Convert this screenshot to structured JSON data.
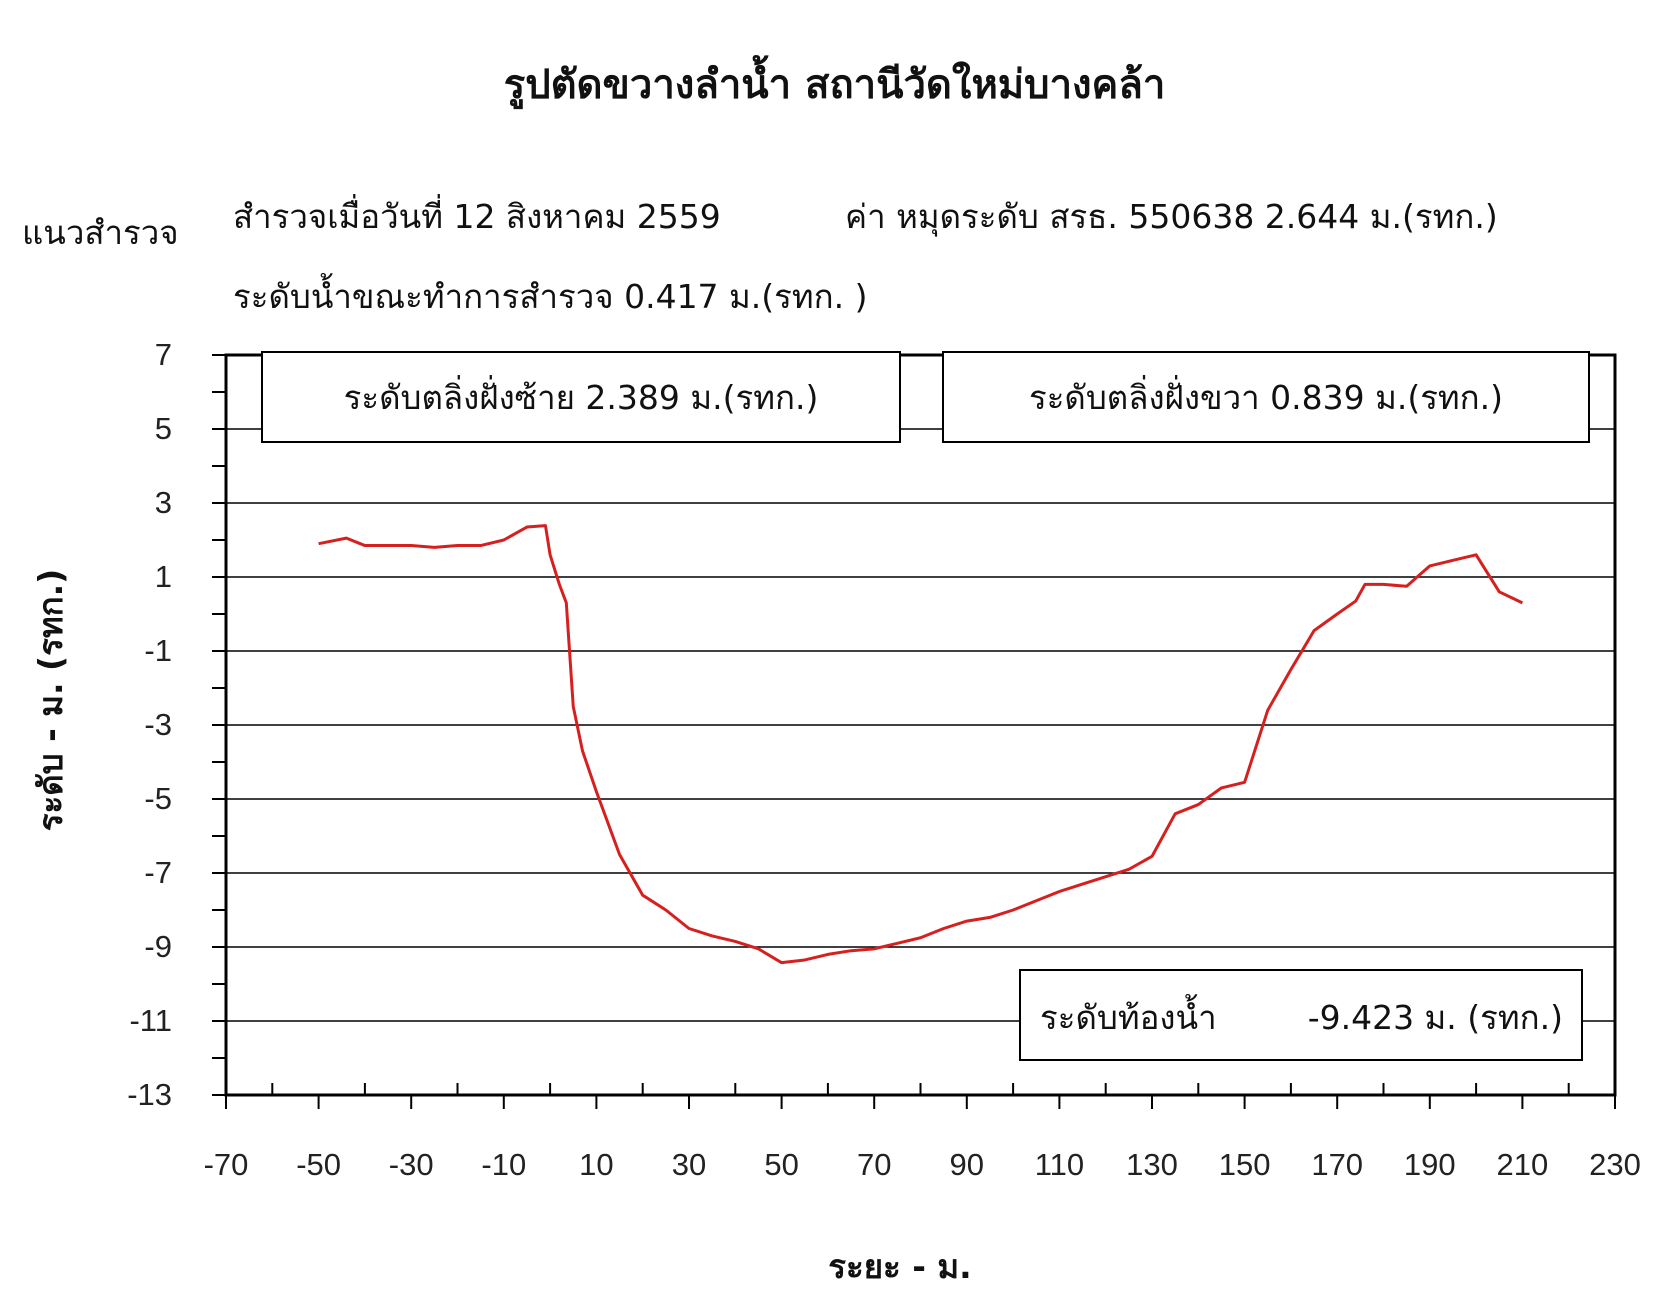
{
  "header": {
    "title": "รูปตัดขวางลำน้ำ  สถานีวัดใหม่บางคล้า",
    "survey_line_label": "แนวสำรวจ",
    "survey_date": "สำรวจเมื่อวันที่  12  สิงหาคม  2559",
    "benchmark": "ค่า หมุดระดับ สรธ. 550638   2.644 ม.(รทก.)",
    "water_level": "ระดับน้ำขณะทำการสำรวจ   0.417  ม.(รทก. )"
  },
  "chart_data": {
    "type": "line",
    "title": "รูปตัดขวางลำน้ำ  สถานีวัดใหม่บางคล้า",
    "xlabel": "ระยะ - ม.",
    "ylabel": "ระดับ - ม. (รทก.)",
    "xlim": [
      -70,
      230
    ],
    "ylim": [
      -13,
      7
    ],
    "x_ticks": [
      "-70",
      "-50",
      "-30",
      "-10",
      "10",
      "30",
      "50",
      "70",
      "90",
      "110",
      "130",
      "150",
      "170",
      "190",
      "210",
      "230"
    ],
    "y_ticks": [
      "7",
      "5",
      "3",
      "1",
      "-1",
      "-3",
      "-5",
      "-7",
      "-9",
      "-11",
      "-13"
    ],
    "grid": "horizontal",
    "line_color": "#d62020",
    "x": [
      -50,
      -44,
      -40,
      -35,
      -30,
      -25,
      -20,
      -15,
      -10,
      -5,
      -1,
      0,
      2,
      3.5,
      5,
      7,
      10,
      15,
      20,
      25,
      30,
      35,
      40,
      45,
      50,
      55,
      60,
      65,
      70,
      75,
      80,
      85,
      90,
      95,
      100,
      105,
      110,
      115,
      120,
      125,
      130,
      135,
      140,
      145,
      150,
      155,
      160,
      165,
      170,
      174,
      176,
      180,
      185,
      190,
      195,
      200,
      205,
      210
    ],
    "y": [
      1.9,
      2.05,
      1.85,
      1.85,
      1.85,
      1.8,
      1.85,
      1.85,
      2.0,
      2.35,
      2.389,
      1.6,
      0.8,
      0.3,
      -2.5,
      -3.7,
      -4.8,
      -6.5,
      -7.6,
      -8.0,
      -8.5,
      -8.7,
      -8.85,
      -9.05,
      -9.423,
      -9.35,
      -9.2,
      -9.1,
      -9.05,
      -8.9,
      -8.75,
      -8.5,
      -8.3,
      -8.2,
      -8.0,
      -7.75,
      -7.5,
      -7.3,
      -7.1,
      -6.9,
      -6.55,
      -5.4,
      -5.15,
      -4.7,
      -4.55,
      -2.6,
      -1.5,
      -0.45,
      0.0,
      0.35,
      0.8,
      0.8,
      0.75,
      1.3,
      1.45,
      1.6,
      0.6,
      0.3
    ],
    "annotations": {
      "left_bank": "ระดับตลิ่งฝั่งซ้าย  2.389   ม.(รทก.)",
      "right_bank": "ระดับตลิ่งฝั่งขวา  0.839   ม.(รทก.)",
      "bed_level_label": "ระดับท้องน้ำ",
      "bed_level_value": "-9.423 ม. (รทก.)"
    }
  }
}
